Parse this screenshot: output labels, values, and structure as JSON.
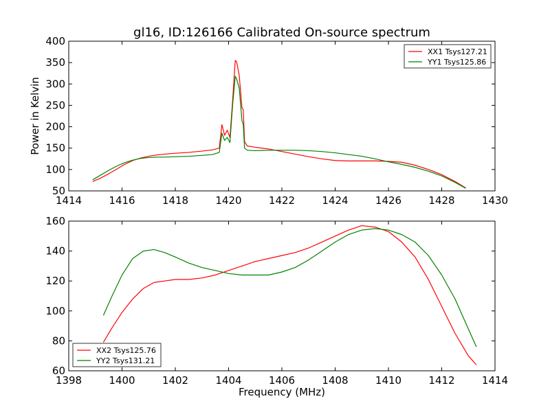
{
  "figure": {
    "title": "gl16, ID:126166 Calibrated On-source spectrum"
  },
  "chart_data": [
    {
      "type": "line",
      "title": "gl16, ID:126166 Calibrated On-source spectrum",
      "xlabel": "",
      "ylabel": "Power in Kelvin",
      "xlim": [
        1414,
        1430
      ],
      "ylim": [
        50,
        400
      ],
      "xticks": [
        1414,
        1416,
        1418,
        1420,
        1422,
        1424,
        1426,
        1428,
        1430
      ],
      "yticks": [
        50,
        100,
        150,
        200,
        250,
        300,
        350,
        400
      ],
      "legend_position": "top-right",
      "grid": false,
      "series": [
        {
          "name": "XX1 Tsys127.21",
          "color": "#ff0000",
          "x": [
            1414.9,
            1415.2,
            1415.5,
            1415.8,
            1416.1,
            1416.4,
            1416.7,
            1417.0,
            1417.3,
            1417.6,
            1418.0,
            1418.5,
            1419.0,
            1419.4,
            1419.65,
            1419.75,
            1419.85,
            1419.95,
            1420.05,
            1420.15,
            1420.25,
            1420.3,
            1420.4,
            1420.5,
            1420.55,
            1420.6,
            1420.7,
            1421.0,
            1421.5,
            1422.0,
            1422.5,
            1423.0,
            1423.5,
            1424.0,
            1424.5,
            1425.0,
            1425.5,
            1426.0,
            1426.5,
            1427.0,
            1427.5,
            1428.0,
            1428.5,
            1428.9
          ],
          "y": [
            72,
            80,
            90,
            101,
            112,
            121,
            127,
            131,
            134,
            136,
            138,
            140,
            143,
            146,
            150,
            205,
            180,
            192,
            175,
            260,
            355,
            352,
            320,
            245,
            240,
            165,
            155,
            152,
            148,
            142,
            136,
            130,
            125,
            121,
            120,
            120,
            120,
            119,
            117,
            110,
            100,
            88,
            72,
            57
          ]
        },
        {
          "name": "YY1 Tsys125.86",
          "color": "#008000",
          "x": [
            1414.9,
            1415.2,
            1415.5,
            1415.8,
            1416.1,
            1416.4,
            1416.7,
            1417.0,
            1417.3,
            1417.6,
            1418.0,
            1418.5,
            1419.0,
            1419.4,
            1419.65,
            1419.75,
            1419.85,
            1419.95,
            1420.05,
            1420.15,
            1420.25,
            1420.3,
            1420.4,
            1420.5,
            1420.55,
            1420.6,
            1420.7,
            1421.0,
            1421.5,
            1422.0,
            1422.5,
            1423.0,
            1423.5,
            1424.0,
            1424.5,
            1425.0,
            1425.5,
            1426.0,
            1426.5,
            1427.0,
            1427.5,
            1428.0,
            1428.5,
            1428.9
          ],
          "y": [
            76,
            87,
            98,
            108,
            116,
            122,
            126,
            128,
            129,
            129,
            130,
            131,
            133,
            135,
            140,
            185,
            168,
            175,
            163,
            250,
            318,
            312,
            290,
            215,
            205,
            150,
            145,
            144,
            145,
            145,
            145,
            144,
            142,
            139,
            135,
            131,
            125,
            118,
            112,
            105,
            96,
            85,
            70,
            56
          ]
        }
      ]
    },
    {
      "type": "line",
      "title": "",
      "xlabel": "Frequency (MHz)",
      "ylabel": "",
      "xlim": [
        1398,
        1414
      ],
      "ylim": [
        60,
        160
      ],
      "xticks": [
        1398,
        1400,
        1402,
        1404,
        1406,
        1408,
        1410,
        1412,
        1414
      ],
      "yticks": [
        60,
        80,
        100,
        120,
        140,
        160
      ],
      "legend_position": "bottom-left",
      "grid": false,
      "series": [
        {
          "name": "XX2 Tsys125.76",
          "color": "#ff0000",
          "x": [
            1399.3,
            1399.6,
            1400.0,
            1400.4,
            1400.8,
            1401.2,
            1401.6,
            1402.0,
            1402.5,
            1403.0,
            1403.5,
            1404.0,
            1404.5,
            1405.0,
            1405.5,
            1406.0,
            1406.5,
            1407.0,
            1407.5,
            1408.0,
            1408.5,
            1409.0,
            1409.5,
            1410.0,
            1410.5,
            1411.0,
            1411.5,
            1412.0,
            1412.5,
            1413.0,
            1413.3
          ],
          "y": [
            79,
            88,
            99,
            108,
            115,
            119,
            120,
            121,
            121,
            122,
            124,
            127,
            130,
            133,
            135,
            137,
            139,
            142,
            146,
            150,
            154,
            157,
            156,
            153,
            146,
            136,
            121,
            103,
            85,
            70,
            64
          ]
        },
        {
          "name": "YY2 Tsys131.21",
          "color": "#008000",
          "x": [
            1399.3,
            1399.6,
            1400.0,
            1400.4,
            1400.8,
            1401.2,
            1401.6,
            1402.0,
            1402.5,
            1403.0,
            1403.5,
            1404.0,
            1404.5,
            1405.0,
            1405.5,
            1406.0,
            1406.5,
            1407.0,
            1407.5,
            1408.0,
            1408.5,
            1409.0,
            1409.5,
            1410.0,
            1410.5,
            1411.0,
            1411.5,
            1412.0,
            1412.5,
            1413.0,
            1413.3
          ],
          "y": [
            97,
            109,
            124,
            135,
            140,
            141,
            139,
            136,
            132,
            129,
            127,
            125,
            124,
            124,
            124,
            126,
            129,
            134,
            140,
            146,
            151,
            154,
            155,
            154,
            151,
            146,
            137,
            124,
            108,
            88,
            76
          ]
        }
      ]
    }
  ]
}
